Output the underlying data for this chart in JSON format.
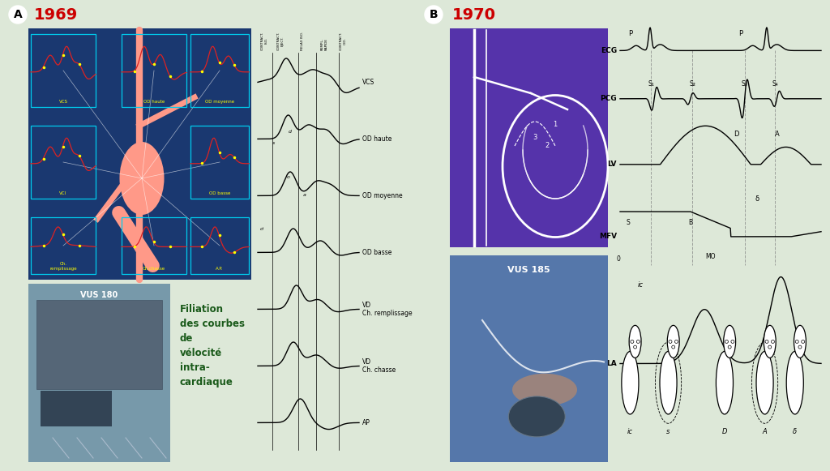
{
  "bg_color": "#dde8d8",
  "year_color": "#cc0000",
  "year_A": "1969",
  "year_B": "1970",
  "filiation_text": "Filiation\ndes courbes\nde\nvélocité\nintra-\ncardiaque",
  "vus180_text": "VUS 180",
  "vus185_text": "VUS 185",
  "labels_A_waveforms": [
    "VCS",
    "OD haute",
    "OD moyenne",
    "OD basse",
    "VD\nCh. remplissage",
    "VD\nCh. chasse",
    "AP"
  ],
  "labels_B_right": [
    "ECG",
    "PCG",
    "LV",
    "MFV",
    "LA"
  ],
  "contract_labels": [
    "CONTRACT.\nISO.",
    "CONTRACT.\nEJECT.\nRELAX ISO.",
    "REMPL.\nRAPIDE",
    "CONTRACT.\nO.D."
  ],
  "top_blue_color": "#1a3870",
  "purple_color": "#5533aa",
  "photo_color_A": "#5577889",
  "photo_color_B": "#4466aa"
}
